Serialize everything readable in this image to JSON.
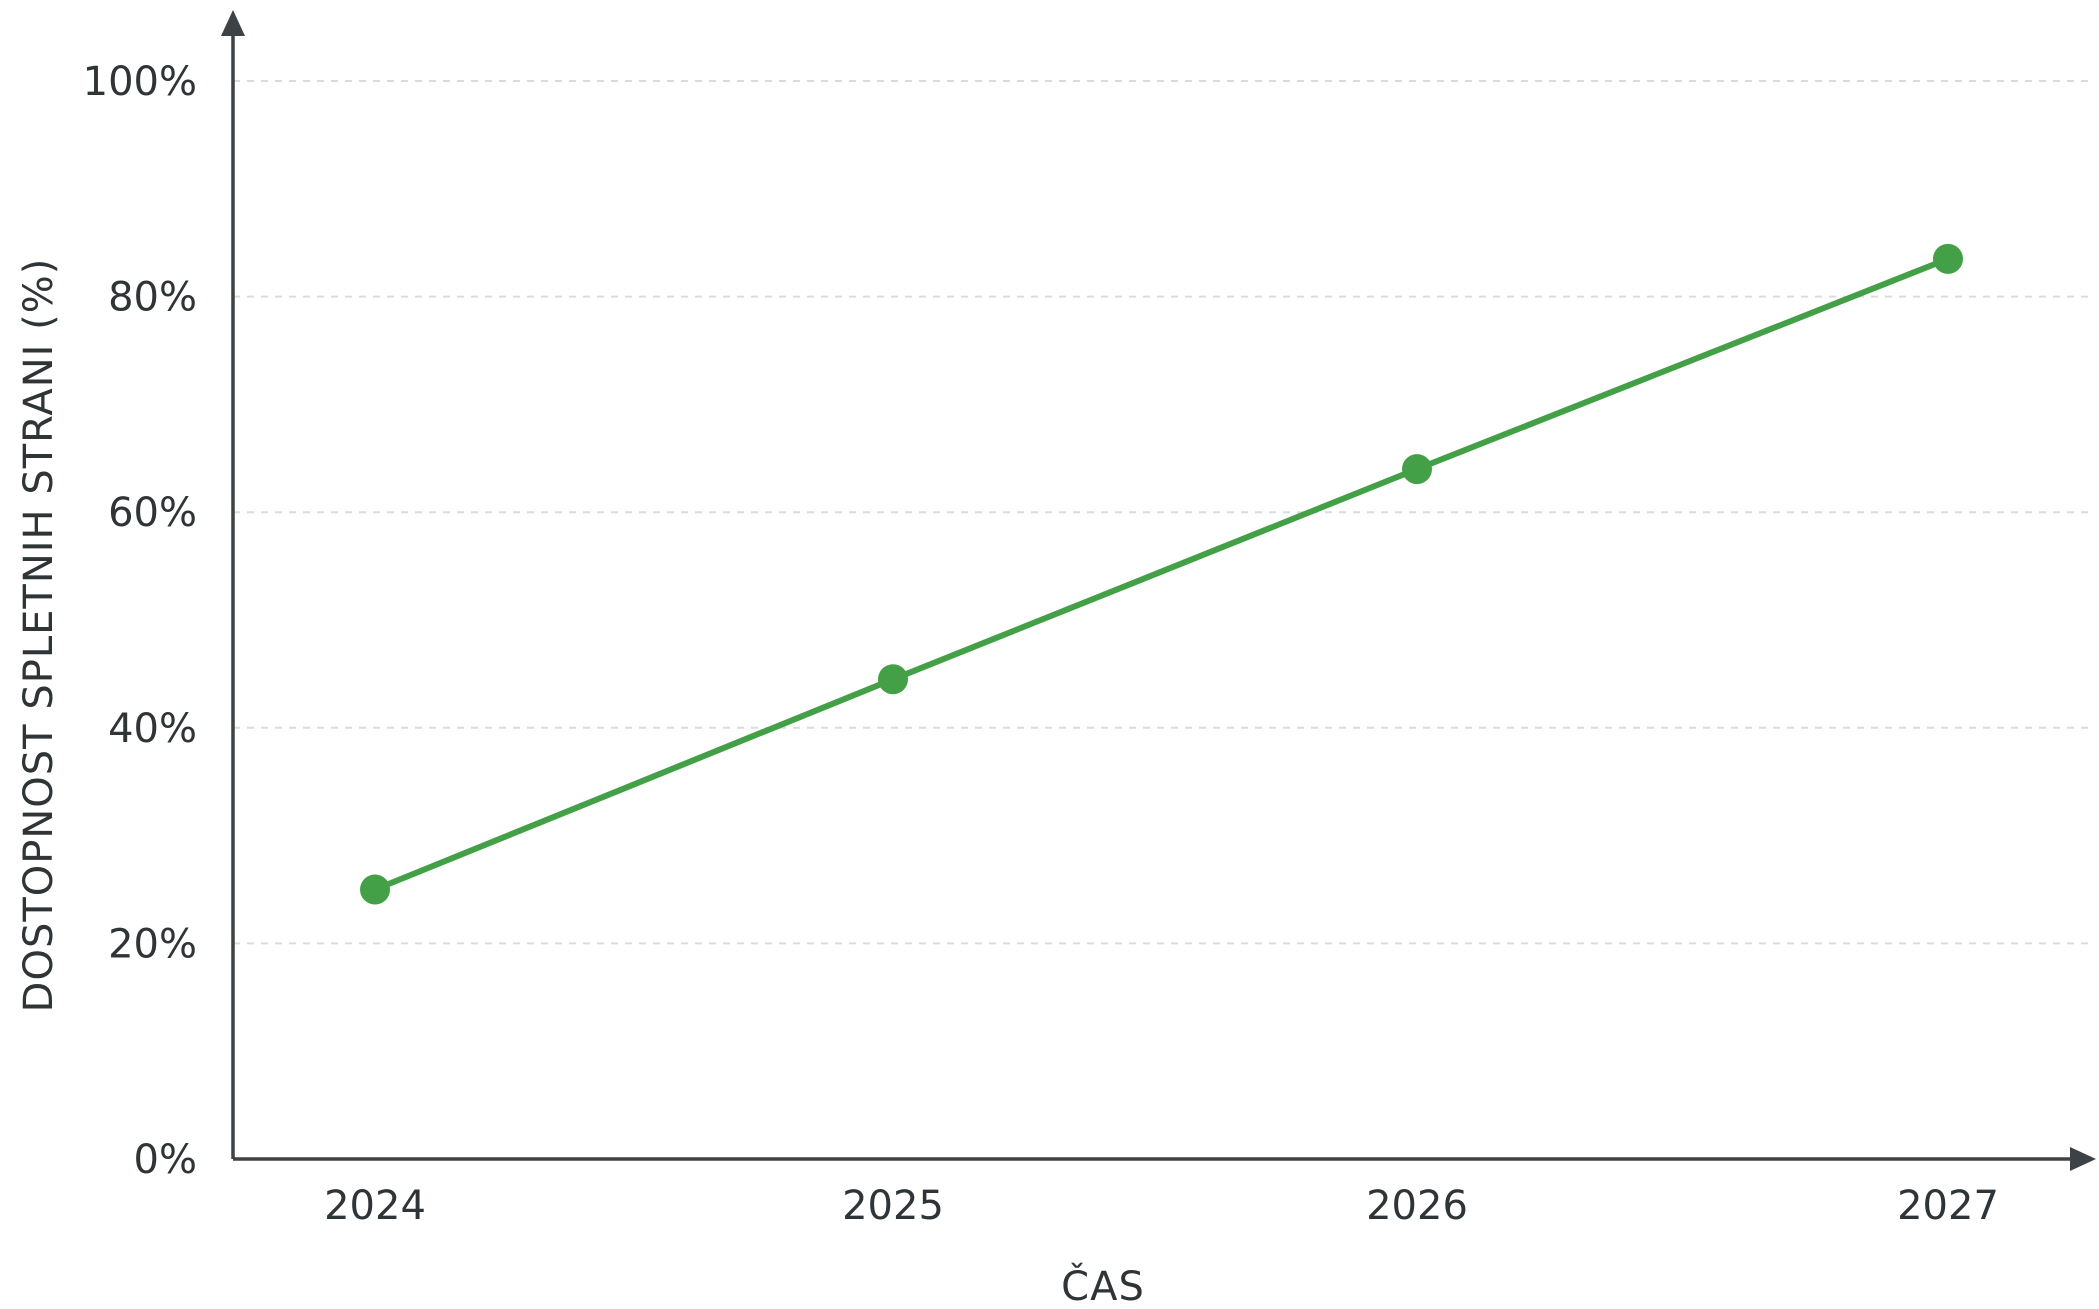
{
  "chart_data": {
    "type": "line",
    "title": "",
    "xlabel": "ČAS",
    "ylabel": "DOSTOPNOST SPLETNIH STRANI (%)",
    "categories": [
      "2024",
      "2025",
      "2026",
      "2027"
    ],
    "series": [
      {
        "values": [
          25,
          44.5,
          64,
          83.5
        ],
        "color": "#43a047"
      }
    ],
    "y_ticks": [
      "0%",
      "20%",
      "40%",
      "60%",
      "80%",
      "100%"
    ],
    "ylim": [
      0,
      100
    ],
    "grid": true,
    "grid_style": "dashed-horizontal",
    "axis_color": "#3d4247"
  }
}
